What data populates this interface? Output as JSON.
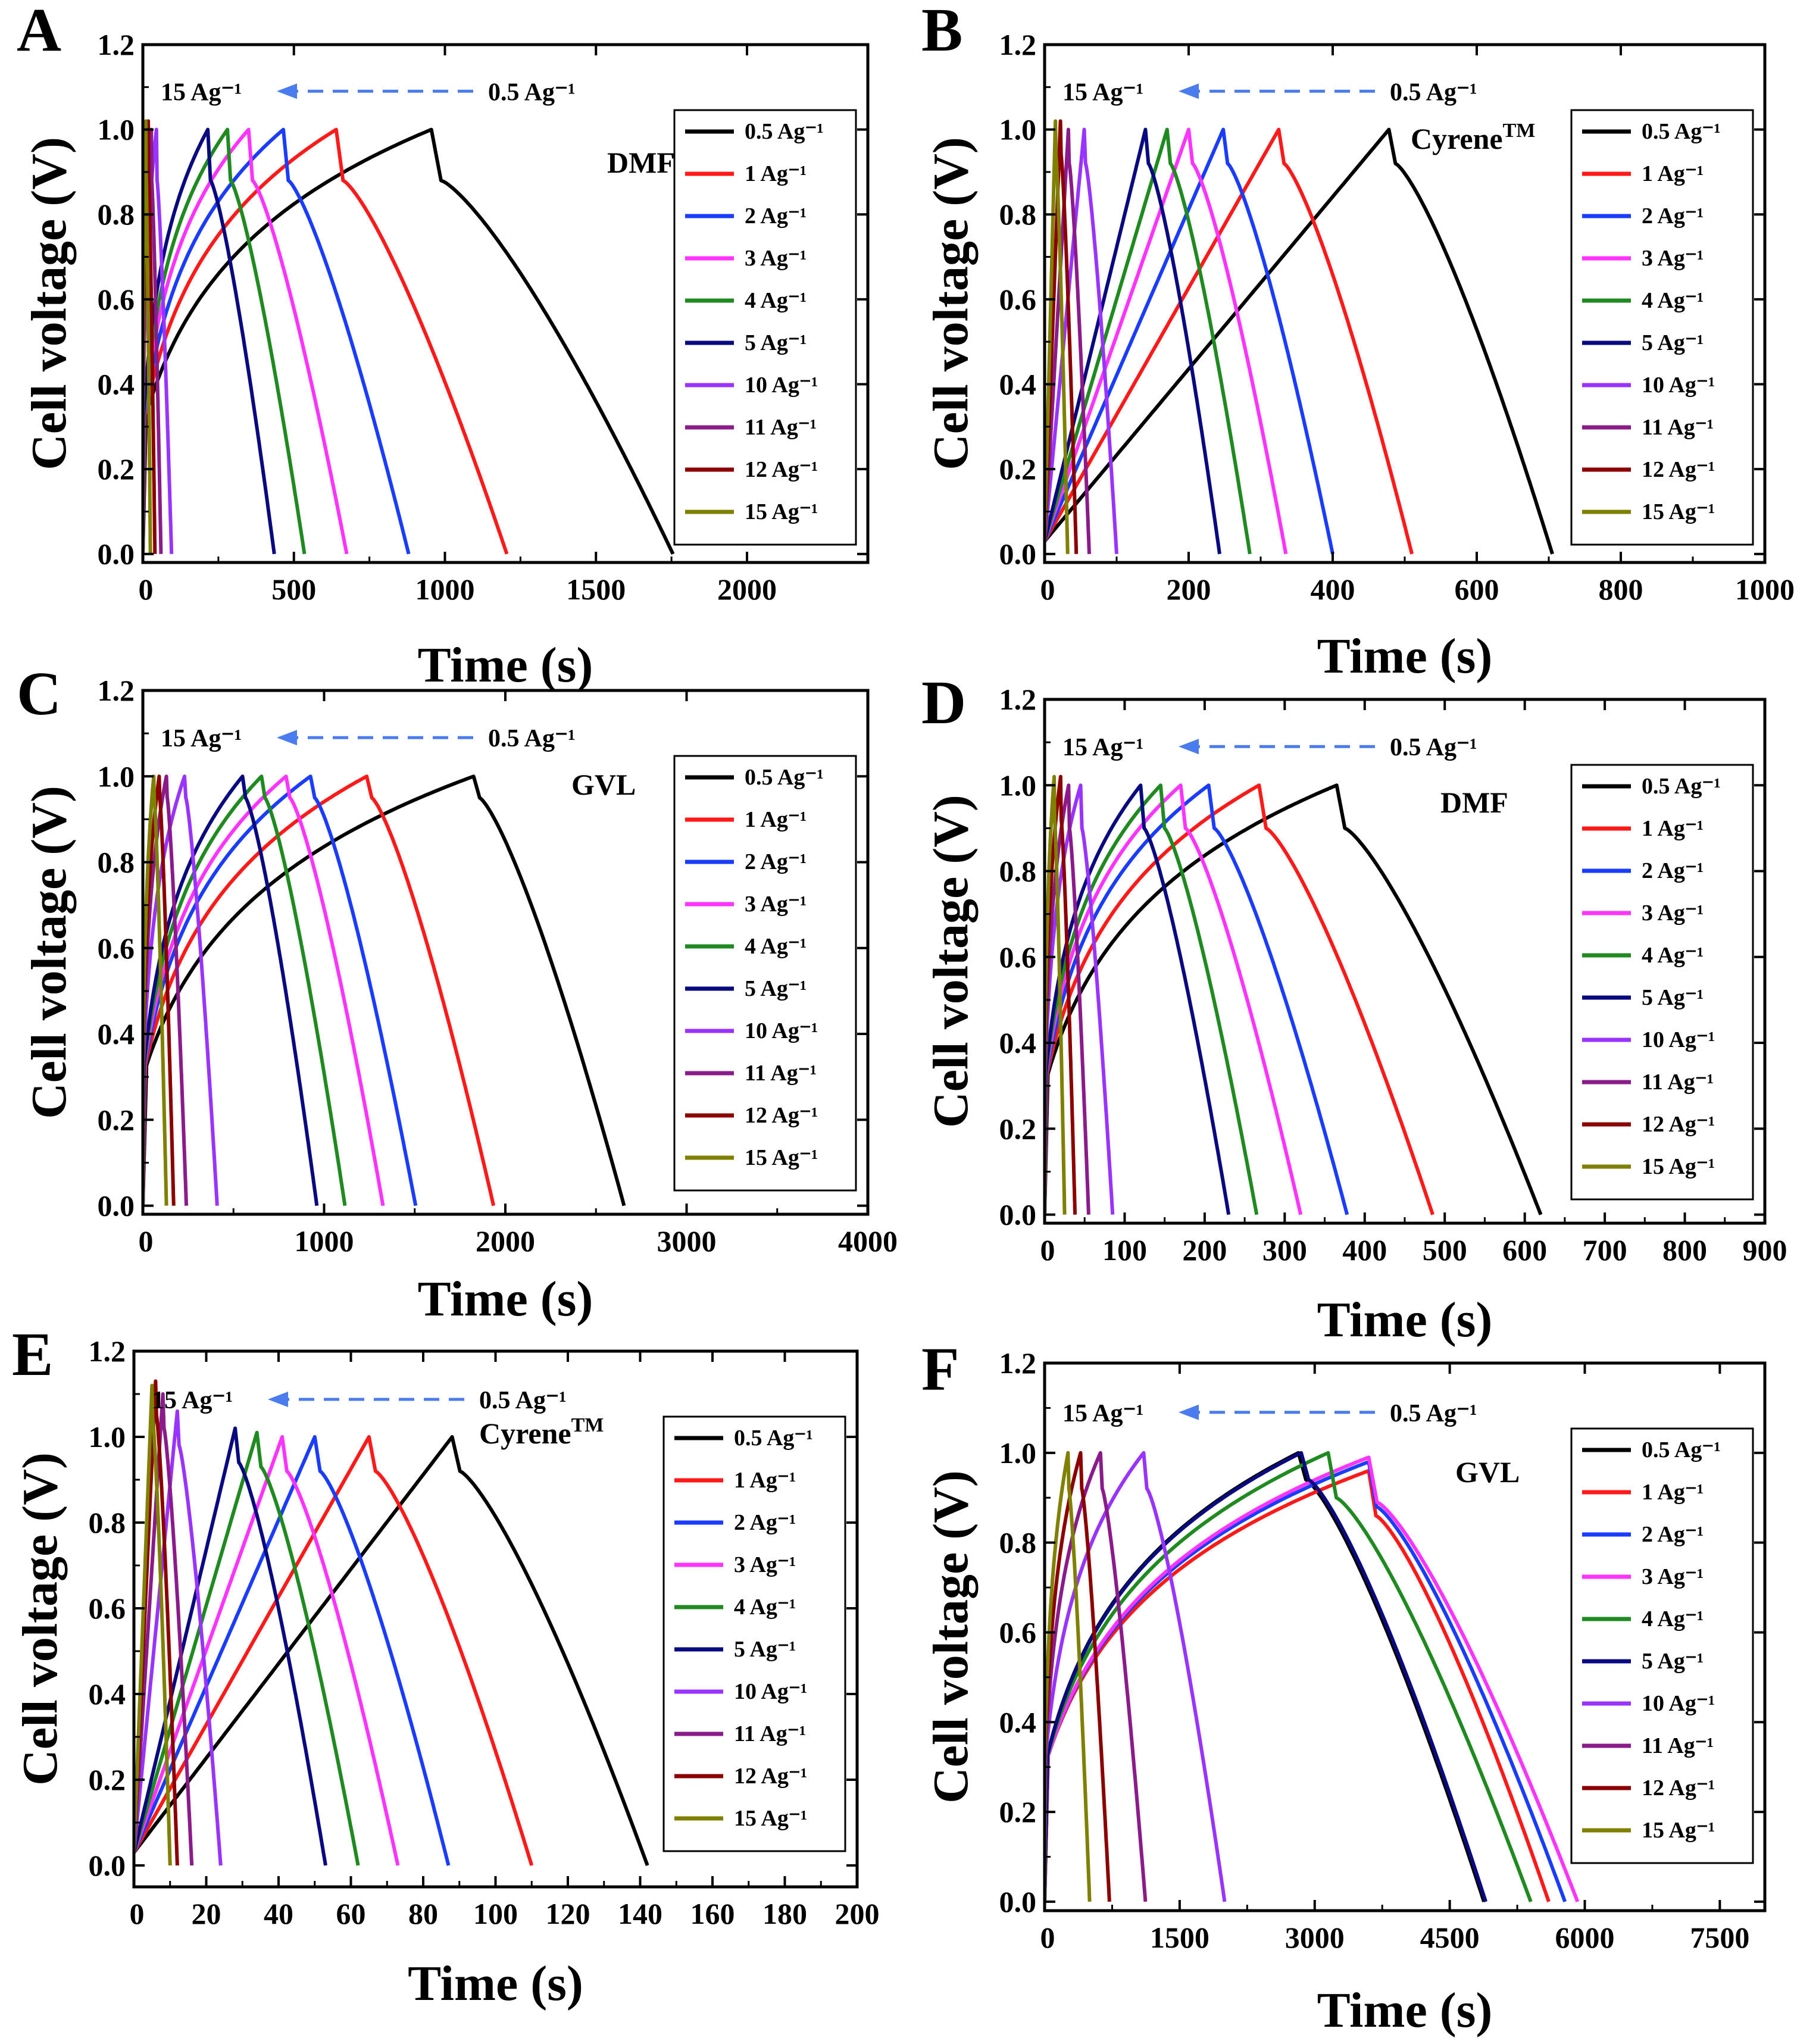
{
  "figure": {
    "description_x_label": "Time (s)",
    "description_y_label": "Cell voltage (V)"
  },
  "colors": {
    "0.5": "#000000",
    "1": "#ff1a1a",
    "2": "#1a3cff",
    "3": "#ff33ff",
    "4": "#1f8a1f",
    "5": "#0a0a80",
    "10": "#9933ff",
    "11": "#8b1a8b",
    "12": "#8b0000",
    "15": "#808000",
    "arrow": "#4a7cf0"
  },
  "chart_data": [
    {
      "type": "line",
      "panel": "A",
      "sample": "DMF",
      "sample_sup": "",
      "xlabel": "Time (s)",
      "ylabel": "Cell voltage (V)",
      "xlim": [
        0,
        2400
      ],
      "ylim": [
        -0.02,
        1.2
      ],
      "xticks": [
        0,
        500,
        1000,
        1500,
        2000
      ],
      "yticks": [
        0.0,
        0.2,
        0.4,
        0.6,
        0.8,
        1.0,
        1.2
      ],
      "ytick_labels": [
        "0.0",
        "0.2",
        "0.4",
        "0.6",
        "0.8",
        "1.0",
        "1.2"
      ],
      "arrow_labels": {
        "from": "0.5 Ag⁻¹",
        "to": "15 Ag⁻¹"
      },
      "shape": "log",
      "series": [
        {
          "name": "0.5 Ag⁻¹",
          "rate": "0.5",
          "v0": 0.3,
          "tc": 955,
          "vmax": 1.0,
          "te": 1755,
          "drop": 0.12
        },
        {
          "name": "1 Ag⁻¹",
          "rate": "1",
          "v0": 0.3,
          "tc": 640,
          "vmax": 1.0,
          "te": 1205,
          "drop": 0.12
        },
        {
          "name": "2 Ag⁻¹",
          "rate": "2",
          "v0": 0.3,
          "tc": 465,
          "vmax": 1.0,
          "te": 880,
          "drop": 0.12
        },
        {
          "name": "3 Ag⁻¹",
          "rate": "3",
          "v0": 0.3,
          "tc": 350,
          "vmax": 1.0,
          "te": 675,
          "drop": 0.12
        },
        {
          "name": "4 Ag⁻¹",
          "rate": "4",
          "v0": 0.3,
          "tc": 280,
          "vmax": 1.0,
          "te": 535,
          "drop": 0.12
        },
        {
          "name": "5 Ag⁻¹",
          "rate": "5",
          "v0": 0.3,
          "tc": 215,
          "vmax": 1.0,
          "te": 435,
          "drop": 0.12
        },
        {
          "name": "10 Ag⁻¹",
          "rate": "10",
          "v0": 0.3,
          "tc": 45,
          "vmax": 1.0,
          "te": 95,
          "drop": 0.12
        },
        {
          "name": "11 Ag⁻¹",
          "rate": "11",
          "v0": 0.3,
          "tc": 28,
          "vmax": 1.0,
          "te": 60,
          "drop": 0.12
        },
        {
          "name": "12 Ag⁻¹",
          "rate": "12",
          "v0": 0.3,
          "tc": 18,
          "vmax": 1.02,
          "te": 40,
          "drop": 0.12
        },
        {
          "name": "15 Ag⁻¹",
          "rate": "15",
          "v0": 0.3,
          "tc": 10,
          "vmax": 1.02,
          "te": 25,
          "drop": 0.12
        }
      ]
    },
    {
      "type": "line",
      "panel": "B",
      "sample": "Cyrene",
      "sample_sup": "TM",
      "xlabel": "Time (s)",
      "ylabel": "Cell voltage (V)",
      "xlim": [
        0,
        1000
      ],
      "ylim": [
        -0.02,
        1.2
      ],
      "xticks": [
        0,
        200,
        400,
        600,
        800,
        1000
      ],
      "yticks": [
        0.0,
        0.2,
        0.4,
        0.6,
        0.8,
        1.0,
        1.2
      ],
      "ytick_labels": [
        "0.0",
        "0.2",
        "0.4",
        "0.6",
        "0.8",
        "1.0",
        "1.2"
      ],
      "arrow_labels": {
        "from": "0.5 Ag⁻¹",
        "to": "15 Ag⁻¹"
      },
      "shape": "linear",
      "series": [
        {
          "name": "0.5 Ag⁻¹",
          "rate": "0.5",
          "v0": 0.03,
          "tc": 478,
          "vmax": 1.0,
          "te": 705,
          "drop": 0.08
        },
        {
          "name": "1 Ag⁻¹",
          "rate": "1",
          "v0": 0.03,
          "tc": 325,
          "vmax": 1.0,
          "te": 510,
          "drop": 0.08
        },
        {
          "name": "2 Ag⁻¹",
          "rate": "2",
          "v0": 0.03,
          "tc": 248,
          "vmax": 1.0,
          "te": 400,
          "drop": 0.08
        },
        {
          "name": "3 Ag⁻¹",
          "rate": "3",
          "v0": 0.03,
          "tc": 200,
          "vmax": 1.0,
          "te": 335,
          "drop": 0.08
        },
        {
          "name": "4 Ag⁻¹",
          "rate": "4",
          "v0": 0.03,
          "tc": 170,
          "vmax": 1.0,
          "te": 285,
          "drop": 0.08
        },
        {
          "name": "5 Ag⁻¹",
          "rate": "5",
          "v0": 0.03,
          "tc": 140,
          "vmax": 1.0,
          "te": 243,
          "drop": 0.08
        },
        {
          "name": "10 Ag⁻¹",
          "rate": "10",
          "v0": 0.03,
          "tc": 55,
          "vmax": 1.0,
          "te": 100,
          "drop": 0.08
        },
        {
          "name": "11 Ag⁻¹",
          "rate": "11",
          "v0": 0.03,
          "tc": 33,
          "vmax": 1.0,
          "te": 62,
          "drop": 0.08
        },
        {
          "name": "12 Ag⁻¹",
          "rate": "12",
          "v0": 0.03,
          "tc": 22,
          "vmax": 1.02,
          "te": 44,
          "drop": 0.08
        },
        {
          "name": "15 Ag⁻¹",
          "rate": "15",
          "v0": 0.03,
          "tc": 15,
          "vmax": 1.02,
          "te": 32,
          "drop": 0.08
        }
      ]
    },
    {
      "type": "line",
      "panel": "C",
      "sample": "GVL",
      "sample_sup": "",
      "xlabel": "Time (s)",
      "ylabel": "Cell voltage (V)",
      "xlim": [
        0,
        4000
      ],
      "ylim": [
        -0.02,
        1.2
      ],
      "xticks": [
        0,
        1000,
        2000,
        3000,
        4000
      ],
      "yticks": [
        0.0,
        0.2,
        0.4,
        0.6,
        0.8,
        1.0,
        1.2
      ],
      "ytick_labels": [
        "0.0",
        "0.2",
        "0.4",
        "0.6",
        "0.8",
        "1.0",
        "1.2"
      ],
      "arrow_labels": {
        "from": "0.5 Ag⁻¹",
        "to": "15 Ag⁻¹"
      },
      "shape": "log",
      "series": [
        {
          "name": "0.5 Ag⁻¹",
          "rate": "0.5",
          "v0": 0.3,
          "tc": 1825,
          "vmax": 1.0,
          "te": 2655,
          "drop": 0.05
        },
        {
          "name": "1 Ag⁻¹",
          "rate": "1",
          "v0": 0.3,
          "tc": 1235,
          "vmax": 1.0,
          "te": 1935,
          "drop": 0.05
        },
        {
          "name": "2 Ag⁻¹",
          "rate": "2",
          "v0": 0.3,
          "tc": 925,
          "vmax": 1.0,
          "te": 1505,
          "drop": 0.05
        },
        {
          "name": "3 Ag⁻¹",
          "rate": "3",
          "v0": 0.3,
          "tc": 790,
          "vmax": 1.0,
          "te": 1325,
          "drop": 0.05
        },
        {
          "name": "4 Ag⁻¹",
          "rate": "4",
          "v0": 0.3,
          "tc": 655,
          "vmax": 1.0,
          "te": 1115,
          "drop": 0.05
        },
        {
          "name": "5 Ag⁻¹",
          "rate": "5",
          "v0": 0.3,
          "tc": 550,
          "vmax": 1.0,
          "te": 960,
          "drop": 0.05
        },
        {
          "name": "10 Ag⁻¹",
          "rate": "10",
          "v0": 0.3,
          "tc": 230,
          "vmax": 1.0,
          "te": 410,
          "drop": 0.05
        },
        {
          "name": "11 Ag⁻¹",
          "rate": "11",
          "v0": 0.3,
          "tc": 130,
          "vmax": 1.0,
          "te": 240,
          "drop": 0.05
        },
        {
          "name": "12 Ag⁻¹",
          "rate": "12",
          "v0": 0.3,
          "tc": 90,
          "vmax": 1.0,
          "te": 170,
          "drop": 0.05
        },
        {
          "name": "15 Ag⁻¹",
          "rate": "15",
          "v0": 0.3,
          "tc": 60,
          "vmax": 1.0,
          "te": 130,
          "drop": 0.05
        }
      ]
    },
    {
      "type": "line",
      "panel": "D",
      "sample": "DMF",
      "sample_sup": "",
      "xlabel": "Time (s)",
      "ylabel": "Cell voltage (V)",
      "xlim": [
        0,
        900
      ],
      "ylim": [
        -0.02,
        1.2
      ],
      "xticks": [
        0,
        100,
        200,
        300,
        400,
        500,
        600,
        700,
        800,
        900
      ],
      "yticks": [
        0.0,
        0.2,
        0.4,
        0.6,
        0.8,
        1.0,
        1.2
      ],
      "ytick_labels": [
        "0.0",
        "0.2",
        "0.4",
        "0.6",
        "0.8",
        "1.0",
        "1.2"
      ],
      "arrow_labels": {
        "from": "0.5 Ag⁻¹",
        "to": "15 Ag⁻¹"
      },
      "shape": "log",
      "series": [
        {
          "name": "0.5 Ag⁻¹",
          "rate": "0.5",
          "v0": 0.3,
          "tc": 365,
          "vmax": 1.0,
          "te": 620,
          "drop": 0.1
        },
        {
          "name": "1 Ag⁻¹",
          "rate": "1",
          "v0": 0.3,
          "tc": 268,
          "vmax": 1.0,
          "te": 485,
          "drop": 0.1
        },
        {
          "name": "2 Ag⁻¹",
          "rate": "2",
          "v0": 0.3,
          "tc": 205,
          "vmax": 1.0,
          "te": 378,
          "drop": 0.1
        },
        {
          "name": "3 Ag⁻¹",
          "rate": "3",
          "v0": 0.3,
          "tc": 170,
          "vmax": 1.0,
          "te": 320,
          "drop": 0.1
        },
        {
          "name": "4 Ag⁻¹",
          "rate": "4",
          "v0": 0.3,
          "tc": 145,
          "vmax": 1.0,
          "te": 265,
          "drop": 0.1
        },
        {
          "name": "5 Ag⁻¹",
          "rate": "5",
          "v0": 0.3,
          "tc": 120,
          "vmax": 1.0,
          "te": 230,
          "drop": 0.1
        },
        {
          "name": "10 Ag⁻¹",
          "rate": "10",
          "v0": 0.3,
          "tc": 45,
          "vmax": 1.0,
          "te": 85,
          "drop": 0.1
        },
        {
          "name": "11 Ag⁻¹",
          "rate": "11",
          "v0": 0.3,
          "tc": 30,
          "vmax": 1.0,
          "te": 55,
          "drop": 0.1
        },
        {
          "name": "12 Ag⁻¹",
          "rate": "12",
          "v0": 0.3,
          "tc": 20,
          "vmax": 1.02,
          "te": 38,
          "drop": 0.1
        },
        {
          "name": "15 Ag⁻¹",
          "rate": "15",
          "v0": 0.3,
          "tc": 12,
          "vmax": 1.02,
          "te": 25,
          "drop": 0.1
        }
      ]
    },
    {
      "type": "line",
      "panel": "E",
      "sample": "Cyrene",
      "sample_sup": "TM",
      "xlabel": "Time (s)",
      "ylabel": "Cell voltage (V)",
      "xlim": [
        0,
        200
      ],
      "ylim": [
        -0.05,
        1.2
      ],
      "xticks": [
        0,
        20,
        40,
        60,
        80,
        100,
        120,
        140,
        160,
        180,
        200
      ],
      "yticks": [
        0.0,
        0.2,
        0.4,
        0.6,
        0.8,
        1.0,
        1.2
      ],
      "ytick_labels": [
        "0.0",
        "0.2",
        "0.4",
        "0.6",
        "0.8",
        "1.0",
        "1.2"
      ],
      "arrow_labels": {
        "from": "0.5 Ag⁻¹",
        "to": "15 Ag⁻¹"
      },
      "shape": "linear",
      "series": [
        {
          "name": "0.5 Ag⁻¹",
          "rate": "0.5",
          "v0": 0.03,
          "tc": 88,
          "vmax": 1.0,
          "te": 142,
          "drop": 0.08
        },
        {
          "name": "1 Ag⁻¹",
          "rate": "1",
          "v0": 0.03,
          "tc": 65,
          "vmax": 1.0,
          "te": 110,
          "drop": 0.08
        },
        {
          "name": "2 Ag⁻¹",
          "rate": "2",
          "v0": 0.03,
          "tc": 50,
          "vmax": 1.0,
          "te": 87,
          "drop": 0.08
        },
        {
          "name": "3 Ag⁻¹",
          "rate": "3",
          "v0": 0.03,
          "tc": 41,
          "vmax": 1.0,
          "te": 73,
          "drop": 0.08
        },
        {
          "name": "4 Ag⁻¹",
          "rate": "4",
          "v0": 0.03,
          "tc": 34,
          "vmax": 1.01,
          "te": 62,
          "drop": 0.08
        },
        {
          "name": "5 Ag⁻¹",
          "rate": "5",
          "v0": 0.03,
          "tc": 28,
          "vmax": 1.02,
          "te": 53,
          "drop": 0.08
        },
        {
          "name": "10 Ag⁻¹",
          "rate": "10",
          "v0": 0.03,
          "tc": 12,
          "vmax": 1.06,
          "te": 24,
          "drop": 0.08
        },
        {
          "name": "11 Ag⁻¹",
          "rate": "11",
          "v0": 0.03,
          "tc": 8,
          "vmax": 1.1,
          "te": 16,
          "drop": 0.08
        },
        {
          "name": "12 Ag⁻¹",
          "rate": "12",
          "v0": 0.03,
          "tc": 6,
          "vmax": 1.13,
          "te": 12,
          "drop": 0.08
        },
        {
          "name": "15 Ag⁻¹",
          "rate": "15",
          "v0": 0.03,
          "tc": 5,
          "vmax": 1.12,
          "te": 10,
          "drop": 0.08
        }
      ]
    },
    {
      "type": "line",
      "panel": "F",
      "sample": "GVL",
      "sample_sup": "",
      "xlabel": "Time (s)",
      "ylabel": "Cell voltage (V)",
      "xlim": [
        0,
        8000
      ],
      "ylim": [
        -0.02,
        1.2
      ],
      "xticks": [
        0,
        1500,
        3000,
        4500,
        6000,
        7500
      ],
      "yticks": [
        0.0,
        0.2,
        0.4,
        0.6,
        0.8,
        1.0,
        1.2
      ],
      "ytick_labels": [
        "0.0",
        "0.2",
        "0.4",
        "0.6",
        "0.8",
        "1.0",
        "1.2"
      ],
      "arrow_labels": {
        "from": "0.5 Ag⁻¹",
        "to": "15 Ag⁻¹"
      },
      "shape": "log",
      "series": [
        {
          "name": "0.5 Ag⁻¹",
          "rate": "0.5",
          "v0": 0.3,
          "tc": 2820,
          "vmax": 1.0,
          "te": 4880,
          "drop": 0.06
        },
        {
          "name": "1 Ag⁻¹",
          "rate": "1",
          "v0": 0.3,
          "tc": 3600,
          "vmax": 0.96,
          "te": 5600,
          "drop": 0.1
        },
        {
          "name": "2 Ag⁻¹",
          "rate": "2",
          "v0": 0.3,
          "tc": 3600,
          "vmax": 0.98,
          "te": 5780,
          "drop": 0.1
        },
        {
          "name": "3 Ag⁻¹",
          "rate": "3",
          "v0": 0.3,
          "tc": 3600,
          "vmax": 0.99,
          "te": 5920,
          "drop": 0.1
        },
        {
          "name": "4 Ag⁻¹",
          "rate": "4",
          "v0": 0.3,
          "tc": 3150,
          "vmax": 1.0,
          "te": 5400,
          "drop": 0.1
        },
        {
          "name": "5 Ag⁻¹",
          "rate": "5",
          "v0": 0.3,
          "tc": 2850,
          "vmax": 1.0,
          "te": 4900,
          "drop": 0.06
        },
        {
          "name": "10 Ag⁻¹",
          "rate": "10",
          "v0": 0.3,
          "tc": 1100,
          "vmax": 1.0,
          "te": 2000,
          "drop": 0.08
        },
        {
          "name": "11 Ag⁻¹",
          "rate": "11",
          "v0": 0.3,
          "tc": 620,
          "vmax": 1.0,
          "te": 1120,
          "drop": 0.08
        },
        {
          "name": "12 Ag⁻¹",
          "rate": "12",
          "v0": 0.3,
          "tc": 400,
          "vmax": 1.0,
          "te": 720,
          "drop": 0.08
        },
        {
          "name": "15 Ag⁻¹",
          "rate": "15",
          "v0": 0.3,
          "tc": 260,
          "vmax": 1.0,
          "te": 500,
          "drop": 0.08
        }
      ]
    }
  ]
}
